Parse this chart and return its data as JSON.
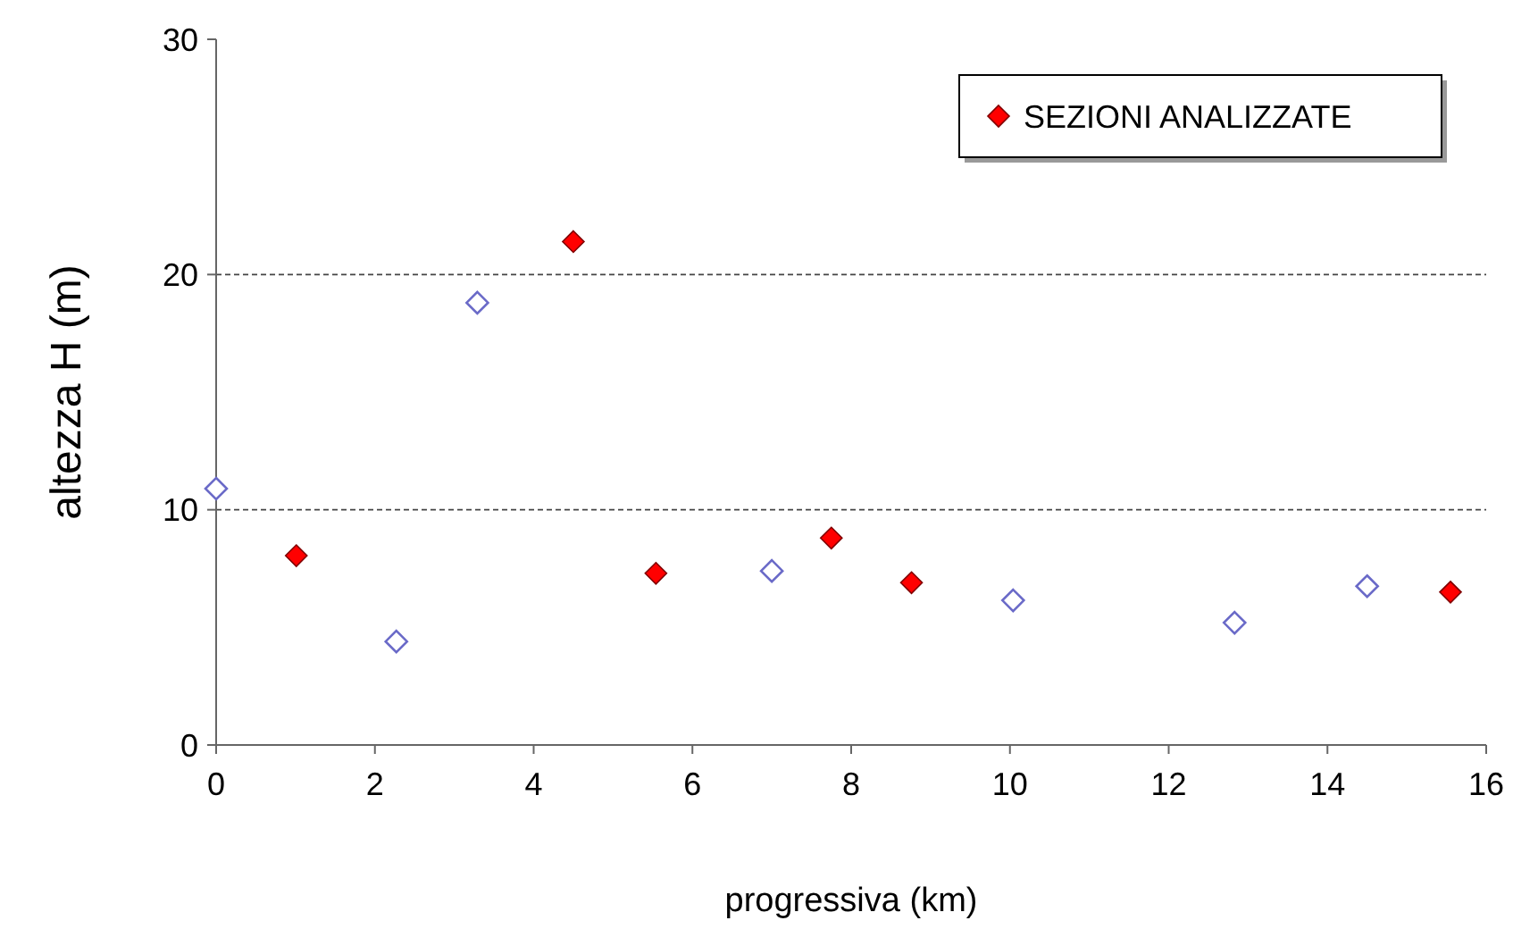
{
  "chart_data": {
    "type": "scatter",
    "xlabel": "progressiva (km)",
    "ylabel": "altezza H (m)",
    "xlim": [
      0,
      16
    ],
    "xticks": [
      0,
      2,
      4,
      6,
      8,
      10,
      12,
      14,
      16
    ],
    "ylim": [
      0,
      30
    ],
    "yticks": [
      0,
      10,
      20,
      30
    ],
    "grid": "y",
    "line_style": "dashed",
    "marker": "diamond",
    "legend": "top right",
    "series": [
      {
        "color": "#6a6ac8",
        "x": [
          0,
          2.27,
          3.29,
          7.0,
          10.04,
          12.83,
          14.5
        ],
        "values": [
          10.9,
          4.4,
          18.8,
          7.4,
          6.15,
          5.2,
          6.75
        ]
      },
      {
        "name": "SEZIONI ANALIZZATE",
        "color": "#ff0000",
        "x": [
          1.01,
          4.5,
          5.54,
          7.75,
          8.76,
          15.55
        ],
        "values": [
          8.05,
          21.4,
          7.3,
          8.8,
          6.9,
          6.5
        ]
      }
    ]
  }
}
